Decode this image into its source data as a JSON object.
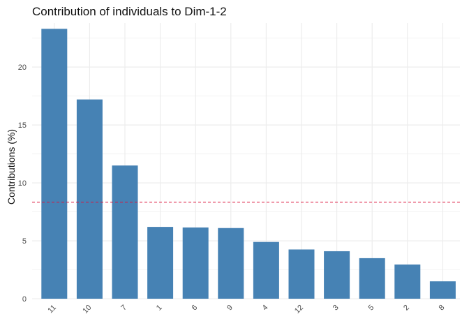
{
  "chart_data": {
    "type": "bar",
    "title": "Contribution of individuals to Dim-1-2",
    "xlabel": "",
    "ylabel": "Contributions (%)",
    "categories": [
      "11",
      "10",
      "7",
      "1",
      "6",
      "9",
      "4",
      "12",
      "3",
      "5",
      "2",
      "8"
    ],
    "values": [
      23.3,
      17.2,
      11.5,
      6.2,
      6.15,
      6.1,
      4.9,
      4.25,
      4.1,
      3.5,
      2.95,
      1.5
    ],
    "ylim": [
      0,
      23.8
    ],
    "yticks": [
      0,
      5,
      10,
      15,
      20
    ],
    "reference_line": {
      "value": 8.33,
      "style": "dashed",
      "color": "#dc143c"
    },
    "bar_color": "#4682b4",
    "grid": true,
    "grid_color": "#ebebeb",
    "legend": "none",
    "x_tick_rotation_deg": 45
  }
}
